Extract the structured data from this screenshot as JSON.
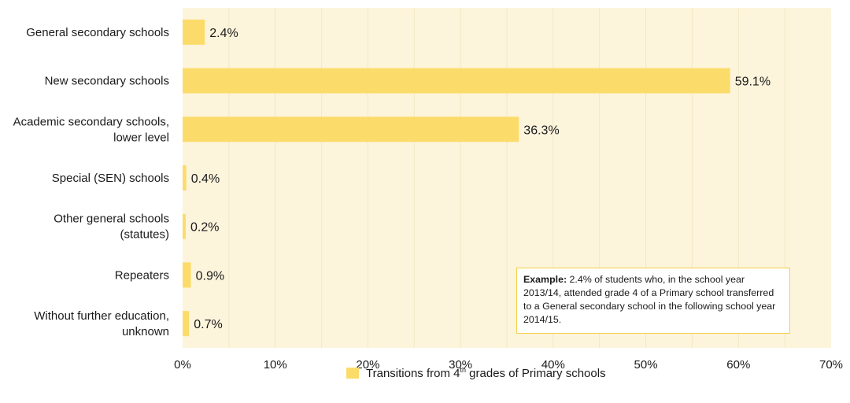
{
  "chart_data": {
    "type": "bar",
    "orientation": "horizontal",
    "categories": [
      [
        "General secondary schools"
      ],
      [
        "New secondary schools"
      ],
      [
        "Academic secondary schools,",
        "lower level"
      ],
      [
        "Special (SEN) schools"
      ],
      [
        "Other general schools",
        "(statutes)"
      ],
      [
        "Repeaters"
      ],
      [
        "Without further education,",
        "unknown"
      ]
    ],
    "series": [
      {
        "name": "Transitions from 4th grades of Primary schools",
        "values": [
          2.4,
          59.1,
          36.3,
          0.4,
          0.2,
          0.9,
          0.7
        ],
        "labels": [
          "2.4%",
          "59.1%",
          "36.3%",
          "0.4%",
          "0.2%",
          "0.9%",
          "0.7%"
        ]
      }
    ],
    "xlim": [
      0,
      70
    ],
    "x_ticks": [
      0,
      10,
      20,
      30,
      40,
      50,
      60,
      70
    ],
    "x_tick_labels": [
      "0%",
      "10%",
      "20%",
      "30%",
      "40%",
      "50%",
      "60%",
      "70%"
    ],
    "grid": "vertical",
    "legend_position": "bottom-center",
    "colors": {
      "bar": "#fbdc6a",
      "plot_background": "#fdf4dc",
      "grid": "#f3e7c4",
      "annotation_border": "#f2cf4a"
    },
    "annotation": {
      "bold": "Example:",
      "text": " 2.4% of students who, in the school year 2013/14, attended grade 4 of a Primary school transferred to a General secondary school in the following school year 2014/15."
    },
    "legend": {
      "prefix": "Transitions from 4",
      "superscript": "th",
      "suffix": " grades of Primary schools"
    }
  }
}
